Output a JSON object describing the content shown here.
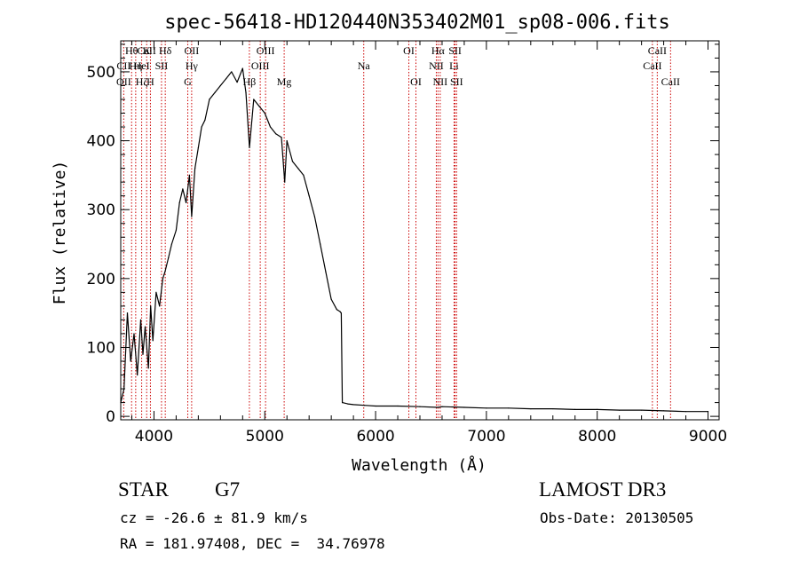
{
  "chart_data": {
    "type": "line",
    "title": "spec-56418-HD120440N353402M01_sp08-006.fits",
    "xlabel": "Wavelength (Å)",
    "ylabel": "Flux (relative)",
    "xlim": [
      3700,
      9100
    ],
    "ylim": [
      -5,
      545
    ],
    "x_ticks": [
      4000,
      5000,
      6000,
      7000,
      8000,
      9000
    ],
    "y_ticks": [
      0,
      100,
      200,
      300,
      400,
      500
    ],
    "grid": false,
    "series": [
      {
        "x": [
          3700,
          3730,
          3760,
          3790,
          3820,
          3850,
          3880,
          3900,
          3920,
          3950,
          3970,
          3990,
          4020,
          4050,
          4080,
          4100,
          4130,
          4160,
          4200,
          4230,
          4260,
          4290,
          4320,
          4340,
          4370,
          4400,
          4430,
          4460,
          4500,
          4550,
          4600,
          4650,
          4700,
          4750,
          4800,
          4830,
          4862,
          4900,
          4950,
          5000,
          5050,
          5100,
          5150,
          5180,
          5200,
          5250,
          5300,
          5350,
          5400,
          5450,
          5500,
          5550,
          5600,
          5650,
          5680,
          5690,
          5700,
          5750,
          5800,
          5900,
          6000,
          6200,
          6400,
          6563,
          6600,
          6800,
          7000,
          7200,
          7400,
          7600,
          7800,
          8000,
          8200,
          8400,
          8600,
          8800,
          9000
        ],
        "y": [
          20,
          40,
          150,
          80,
          120,
          60,
          140,
          90,
          130,
          70,
          160,
          110,
          180,
          160,
          200,
          210,
          230,
          250,
          270,
          310,
          330,
          310,
          350,
          290,
          360,
          390,
          420,
          430,
          460,
          470,
          480,
          490,
          500,
          485,
          505,
          470,
          390,
          460,
          450,
          440,
          420,
          410,
          405,
          340,
          400,
          370,
          360,
          350,
          320,
          290,
          250,
          210,
          170,
          155,
          152,
          150,
          20,
          18,
          17,
          16,
          15,
          15,
          14,
          13,
          14,
          13,
          12,
          12,
          11,
          11,
          10,
          10,
          9,
          9,
          8,
          7,
          7
        ]
      }
    ],
    "spectral_lines": [
      {
        "name": "Hθ",
        "wavelength": 3798,
        "row": 1
      },
      {
        "name": "CaII",
        "wavelength": 3934,
        "row": 1
      },
      {
        "name": "K",
        "wavelength": 3934,
        "row": 1
      },
      {
        "name": "Hδ",
        "wavelength": 4102,
        "row": 1
      },
      {
        "name": "OII",
        "wavelength": 4340,
        "row": 1
      },
      {
        "name": "OIII",
        "wavelength": 5007,
        "row": 1
      },
      {
        "name": "OI",
        "wavelength": 6300,
        "row": 1
      },
      {
        "name": "Hα",
        "wavelength": 6563,
        "row": 1
      },
      {
        "name": "SII",
        "wavelength": 6717,
        "row": 1
      },
      {
        "name": "CaII",
        "wavelength": 8542,
        "row": 1
      },
      {
        "name": "CII",
        "wavelength": 3727,
        "row": 2
      },
      {
        "name": "Hη",
        "wavelength": 3835,
        "row": 2
      },
      {
        "name": "HeI",
        "wavelength": 3889,
        "row": 2
      },
      {
        "name": "SII",
        "wavelength": 4068,
        "row": 2
      },
      {
        "name": "Hγ",
        "wavelength": 4340,
        "row": 2
      },
      {
        "name": "OIII",
        "wavelength": 4959,
        "row": 2
      },
      {
        "name": "Na",
        "wavelength": 5893,
        "row": 2
      },
      {
        "name": "NII",
        "wavelength": 6548,
        "row": 2
      },
      {
        "name": "Li",
        "wavelength": 6708,
        "row": 2
      },
      {
        "name": "CaII",
        "wavelength": 8498,
        "row": 2
      },
      {
        "name": "OII",
        "wavelength": 3727,
        "row": 3
      },
      {
        "name": "Hζ",
        "wavelength": 3889,
        "row": 3
      },
      {
        "name": "H",
        "wavelength": 3968,
        "row": 3
      },
      {
        "name": "G",
        "wavelength": 4305,
        "row": 3
      },
      {
        "name": "Hβ",
        "wavelength": 4861,
        "row": 3
      },
      {
        "name": "Mg",
        "wavelength": 5175,
        "row": 3
      },
      {
        "name": "OI",
        "wavelength": 6364,
        "row": 3
      },
      {
        "name": "NII",
        "wavelength": 6583,
        "row": 3
      },
      {
        "name": "SII",
        "wavelength": 6731,
        "row": 3
      },
      {
        "name": "CaII",
        "wavelength": 8662,
        "row": 3
      }
    ],
    "line_color": "#cc0000",
    "spectrum_color": "#000000"
  },
  "info": {
    "class_label": "STAR",
    "subclass": "G7",
    "survey": "LAMOST DR3",
    "redshift": "cz = -26.6 ± 81.9 km/s",
    "obs_date": "Obs-Date: 20130505",
    "coords": "RA = 181.97408, DEC =  34.76978"
  }
}
